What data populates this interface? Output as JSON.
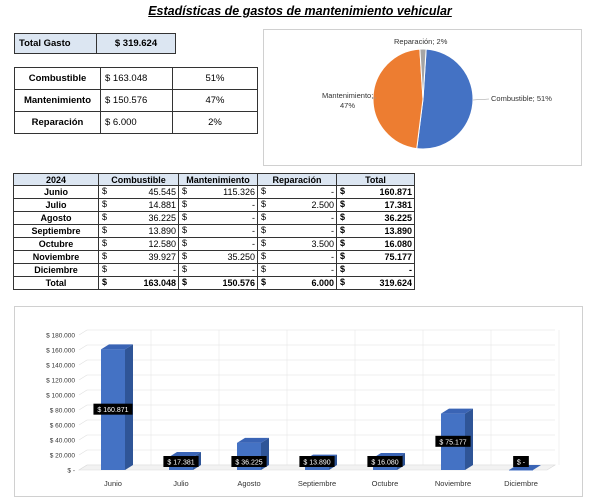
{
  "title": "Estadísticas de gastos de mantenimiento vehicular",
  "total_gasto": {
    "label": "Total Gasto",
    "value": "$ 319.624"
  },
  "summary": [
    {
      "label": "Combustible",
      "amount": "$ 163.048",
      "pct": "51%"
    },
    {
      "label": "Mantenimiento",
      "amount": "$ 150.576",
      "pct": "47%"
    },
    {
      "label": "Reparación",
      "amount": "$ 6.000",
      "pct": "2%"
    }
  ],
  "table": {
    "headers": [
      "2024",
      "Combustible",
      "Mantenimiento",
      "Reparación",
      "Total"
    ],
    "rows": [
      {
        "month": "Junio",
        "combustible": "45.545",
        "mantenimiento": "115.326",
        "reparacion": "-",
        "total": "160.871"
      },
      {
        "month": "Julio",
        "combustible": "14.881",
        "mantenimiento": "-",
        "reparacion": "2.500",
        "total": "17.381"
      },
      {
        "month": "Agosto",
        "combustible": "36.225",
        "mantenimiento": "-",
        "reparacion": "-",
        "total": "36.225"
      },
      {
        "month": "Septiembre",
        "combustible": "13.890",
        "mantenimiento": "-",
        "reparacion": "-",
        "total": "13.890"
      },
      {
        "month": "Octubre",
        "combustible": "12.580",
        "mantenimiento": "-",
        "reparacion": "3.500",
        "total": "16.080"
      },
      {
        "month": "Noviembre",
        "combustible": "39.927",
        "mantenimiento": "35.250",
        "reparacion": "-",
        "total": "75.177"
      },
      {
        "month": "Diciembre",
        "combustible": "-",
        "mantenimiento": "-",
        "reparacion": "-",
        "total": "-"
      }
    ],
    "total_row": {
      "month": "Total",
      "combustible": "163.048",
      "mantenimiento": "150.576",
      "reparacion": "6.000",
      "total": "319.624"
    },
    "currency_symbol": "$"
  },
  "chart_data": [
    {
      "type": "pie",
      "title": "",
      "slices": [
        {
          "label": "Combustible",
          "value": 51,
          "display": "Combustible; 51%",
          "color": "#4472c4"
        },
        {
          "label": "Mantenimiento",
          "value": 47,
          "display1": "Mantenimiento;",
          "display2": "47%",
          "color": "#ed7d31"
        },
        {
          "label": "Reparación",
          "value": 2,
          "display": "Reparación; 2%",
          "color": "#a5a5a5"
        }
      ]
    },
    {
      "type": "bar",
      "title": "",
      "categories": [
        "Junio",
        "Julio",
        "Agosto",
        "Septiembre",
        "Octubre",
        "Noviembre",
        "Diciembre"
      ],
      "values": [
        160871,
        17381,
        36225,
        13890,
        16080,
        75177,
        0
      ],
      "labels": [
        "$ 160.871",
        "$ 17.381",
        "$ 36.225",
        "$ 13.890",
        "$ 16.080",
        "$ 75.177",
        "$ -"
      ],
      "yticks": [
        "$ -",
        "$ 20.000",
        "$ 40.000",
        "$ 60.000",
        "$ 80.000",
        "$ 100.000",
        "$ 120.000",
        "$ 140.000",
        "$ 160.000",
        "$ 180.000"
      ],
      "ylim": [
        0,
        180000
      ],
      "color": "#4472c4"
    }
  ]
}
